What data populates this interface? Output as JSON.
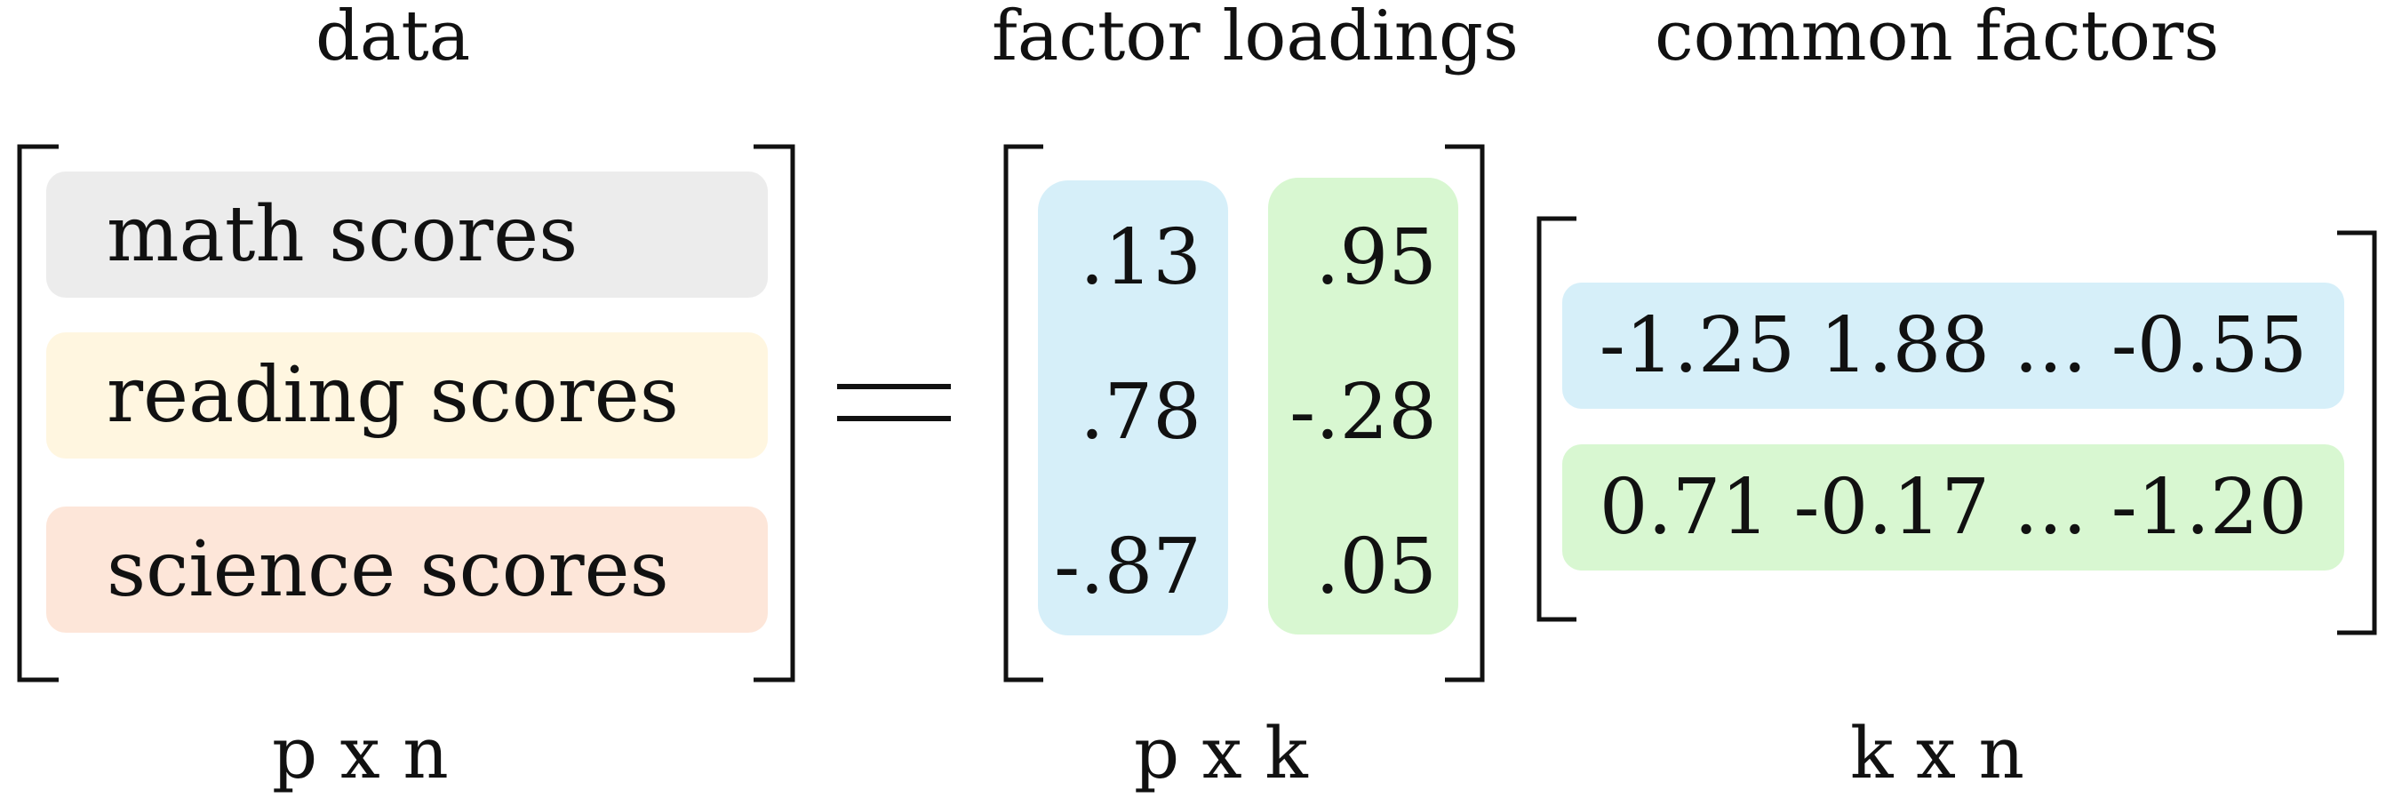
{
  "titles": {
    "data": "data",
    "loadings": "factor loadings",
    "factors": "common factors"
  },
  "data_matrix": {
    "rows": [
      {
        "label": "math scores",
        "color": "#ececec"
      },
      {
        "label": "reading scores",
        "color": "#fff6e0"
      },
      {
        "label": "science scores",
        "color": "#fde6d9"
      }
    ],
    "dims": "p x n"
  },
  "equals": "=",
  "loadings_matrix": {
    "columns": [
      {
        "color": "#d6eff9",
        "values": [
          ".13",
          ".78",
          "-.87"
        ]
      },
      {
        "color": "#d8f7d1",
        "values": [
          ".95",
          "-.28",
          ".05"
        ]
      }
    ],
    "dims": "p x k"
  },
  "factors_matrix": {
    "rows": [
      {
        "text": "-1.25 1.88 ... -0.55",
        "color": "#d6eff9"
      },
      {
        "text": "0.71 -0.17 ... -1.20",
        "color": "#d8f7d1"
      }
    ],
    "dims": "k x n"
  }
}
